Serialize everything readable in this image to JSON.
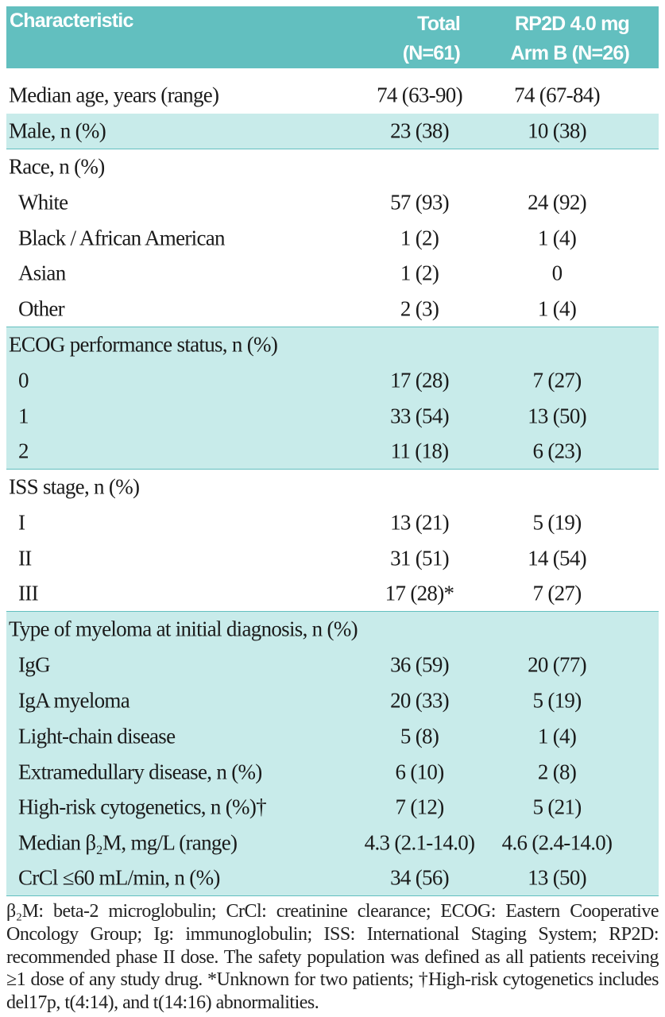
{
  "header": {
    "characteristic": "Characteristic",
    "total_line1": "Total",
    "total_line2": "(N=61)",
    "armb_line1": "RP2D 4.0 mg",
    "armb_line2": "Arm B (N=26)"
  },
  "colors": {
    "header_bg": "#62bfbf",
    "band_bg": "#c8ebea"
  },
  "rows": [
    {
      "label": "Median age, years (range)",
      "total": "74 (63-90)",
      "armb": "74 (67-84)",
      "indent": false,
      "shaded": false,
      "sep": false
    },
    {
      "label": "Male, n (%)",
      "total": "23 (38)",
      "armb": "10 (38)",
      "indent": false,
      "shaded": true,
      "sep": true
    },
    {
      "label": "Race, n (%)",
      "total": "",
      "armb": "",
      "indent": false,
      "shaded": false,
      "sep": false
    },
    {
      "label": "White",
      "total": "57 (93)",
      "armb": "24 (92)",
      "indent": true,
      "shaded": false,
      "sep": false
    },
    {
      "label": "Black / African American",
      "total": "1 (2)",
      "armb": "1 (4)",
      "indent": true,
      "shaded": false,
      "sep": false
    },
    {
      "label": "Asian",
      "total": "1 (2)",
      "armb": "0",
      "indent": true,
      "shaded": false,
      "sep": false
    },
    {
      "label": "Other",
      "total": "2 (3)",
      "armb": "1 (4)",
      "indent": true,
      "shaded": false,
      "sep": true
    },
    {
      "label": "ECOG performance status, n (%)",
      "total": "",
      "armb": "",
      "indent": false,
      "shaded": true,
      "sep": false
    },
    {
      "label": "0",
      "total": "17 (28)",
      "armb": "7 (27)",
      "indent": true,
      "shaded": true,
      "sep": false
    },
    {
      "label": "1",
      "total": "33 (54)",
      "armb": "13 (50)",
      "indent": true,
      "shaded": true,
      "sep": false
    },
    {
      "label": "2",
      "total": "11 (18)",
      "armb": "6 (23)",
      "indent": true,
      "shaded": true,
      "sep": true
    },
    {
      "label": "ISS stage, n (%)",
      "total": "",
      "armb": "",
      "indent": false,
      "shaded": false,
      "sep": false
    },
    {
      "label": "I",
      "total": "13 (21)",
      "armb": "5 (19)",
      "indent": true,
      "shaded": false,
      "sep": false
    },
    {
      "label": "II",
      "total": "31 (51)",
      "armb": "14 (54)",
      "indent": true,
      "shaded": false,
      "sep": false
    },
    {
      "label": "III",
      "total": "17 (28)*",
      "armb": "7 (27)",
      "indent": true,
      "shaded": false,
      "sep": true
    },
    {
      "label": "Type of myeloma at initial diagnosis, n (%)",
      "total": "",
      "armb": "",
      "indent": false,
      "shaded": true,
      "sep": false
    },
    {
      "label": "IgG",
      "total": "36 (59)",
      "armb": "20 (77)",
      "indent": true,
      "shaded": true,
      "sep": false
    },
    {
      "label": "IgA myeloma",
      "total": "20 (33)",
      "armb": "5 (19)",
      "indent": true,
      "shaded": true,
      "sep": false
    },
    {
      "label": "Light-chain disease",
      "total": "5 (8)",
      "armb": "1 (4)",
      "indent": true,
      "shaded": true,
      "sep": false
    },
    {
      "label": "Extramedullary disease, n (%)",
      "total": "6 (10)",
      "armb": "2 (8)",
      "indent": true,
      "shaded": true,
      "sep": false
    },
    {
      "label": "High-risk cytogenetics, n (%)†",
      "total": "7 (12)",
      "armb": "5 (21)",
      "indent": true,
      "shaded": true,
      "sep": false
    },
    {
      "label": "Median β₂M, mg/L (range)",
      "total": "4.3 (2.1-14.0)",
      "armb": "4.6 (2.4-14.0)",
      "indent": true,
      "shaded": true,
      "sep": false
    },
    {
      "label": "CrCl ≤60 mL/min, n (%)",
      "total": "34 (56)",
      "armb": "13 (50)",
      "indent": true,
      "shaded": true,
      "sep": true
    }
  ],
  "footnote": "β₂M: beta-2 microglobulin; CrCl: creatinine clearance; ECOG: Eastern Cooperative Oncology Group; Ig: immunoglobulin; ISS: International Staging System; RP2D: recommended phase II dose. The safety population was defined as all patients receiving ≥1 dose of any study drug. *Unknown for two patients; †High-risk cytogenetics includes del17p, t(4:14), and t(14:16) abnormalities."
}
